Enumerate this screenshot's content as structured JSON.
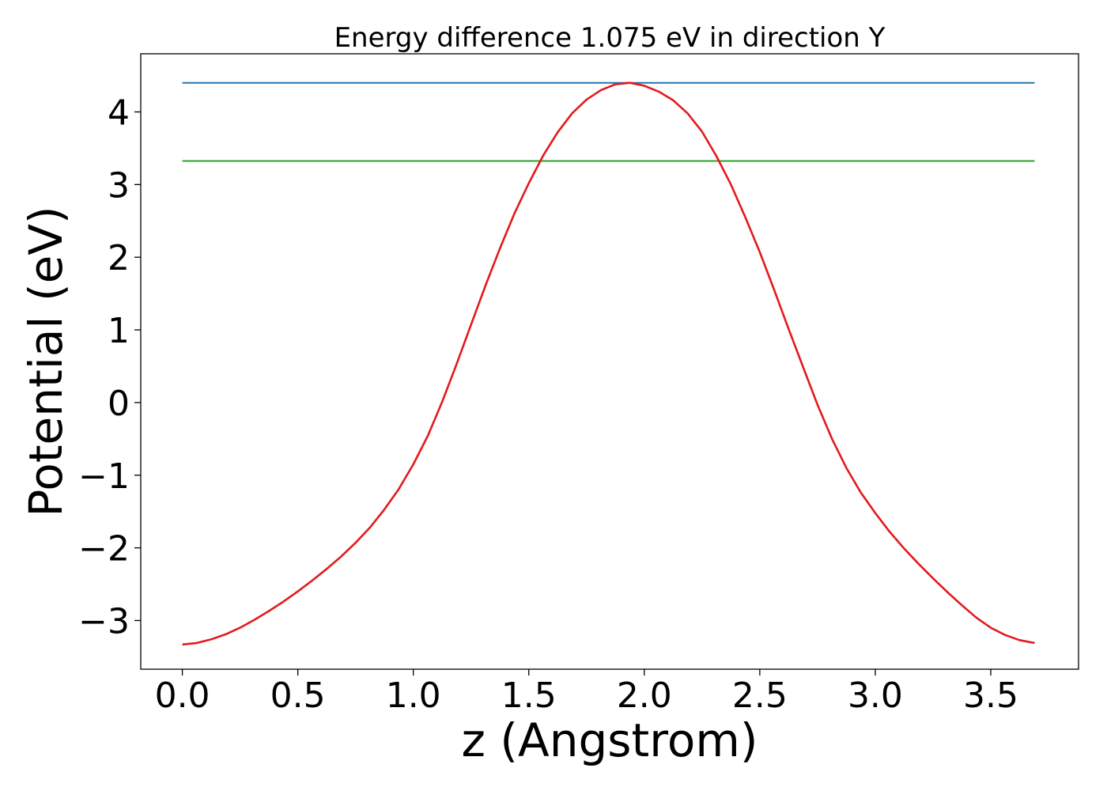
{
  "chart_data": {
    "type": "line",
    "title": "Energy difference 1.075 eV in direction Y",
    "xlabel": "z (Angstrom)",
    "ylabel": "Potential (eV)",
    "xlim": [
      -0.18,
      3.88
    ],
    "ylim": [
      -3.67,
      4.8
    ],
    "xticks": [
      0.0,
      0.5,
      1.0,
      1.5,
      2.0,
      2.5,
      3.0,
      3.5
    ],
    "xtick_labels": [
      "0.0",
      "0.5",
      "1.0",
      "1.5",
      "2.0",
      "2.5",
      "3.0",
      "3.5"
    ],
    "yticks": [
      -3,
      -2,
      -1,
      0,
      1,
      2,
      3,
      4
    ],
    "ytick_labels": [
      "−3",
      "−2",
      "−1",
      "0",
      "1",
      "2",
      "3",
      "4"
    ],
    "grid": false,
    "series": [
      {
        "color": "#1f77b4",
        "x": [
          0.0,
          3.69
        ],
        "y": [
          4.4,
          4.4
        ]
      },
      {
        "color": "#2ca02c",
        "x": [
          0.0,
          3.69
        ],
        "y": [
          3.325,
          3.325
        ]
      },
      {
        "color": "#e31a1c",
        "x": [
          0.0,
          0.0625,
          0.125,
          0.1875,
          0.25,
          0.3125,
          0.375,
          0.4375,
          0.5,
          0.5625,
          0.625,
          0.6875,
          0.75,
          0.8125,
          0.875,
          0.9375,
          1.0,
          1.0625,
          1.125,
          1.1875,
          1.25,
          1.3125,
          1.375,
          1.4375,
          1.5,
          1.5625,
          1.625,
          1.6875,
          1.75,
          1.8125,
          1.875,
          1.9375,
          2.0,
          2.0625,
          2.125,
          2.1875,
          2.25,
          2.3125,
          2.375,
          2.4375,
          2.5,
          2.5625,
          2.625,
          2.6875,
          2.75,
          2.8125,
          2.875,
          2.9375,
          3.0,
          3.0625,
          3.125,
          3.1875,
          3.25,
          3.3125,
          3.375,
          3.4375,
          3.5,
          3.5625,
          3.625,
          3.69
        ],
        "y": [
          -3.33,
          -3.31,
          -3.26,
          -3.19,
          -3.1,
          -2.99,
          -2.87,
          -2.74,
          -2.6,
          -2.45,
          -2.29,
          -2.12,
          -1.93,
          -1.72,
          -1.47,
          -1.19,
          -0.85,
          -0.46,
          0.01,
          0.53,
          1.07,
          1.61,
          2.12,
          2.6,
          3.02,
          3.4,
          3.72,
          3.98,
          4.17,
          4.3,
          4.38,
          4.4,
          4.36,
          4.28,
          4.16,
          3.98,
          3.73,
          3.39,
          3.0,
          2.55,
          2.07,
          1.55,
          1.01,
          0.49,
          -0.03,
          -0.5,
          -0.9,
          -1.24,
          -1.52,
          -1.78,
          -2.01,
          -2.22,
          -2.42,
          -2.61,
          -2.79,
          -2.96,
          -3.1,
          -3.2,
          -3.27,
          -3.31
        ]
      }
    ]
  }
}
